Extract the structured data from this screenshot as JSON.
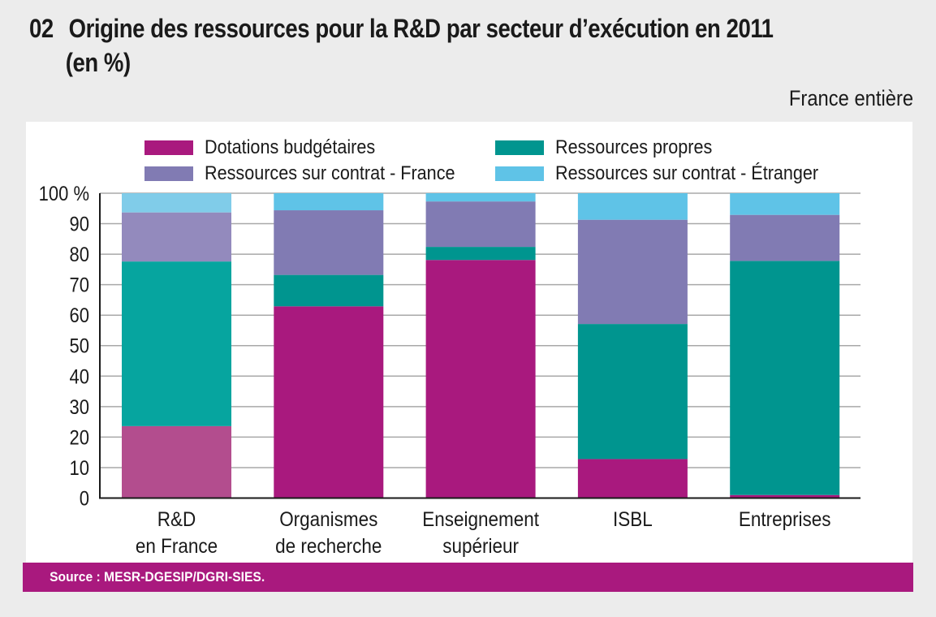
{
  "header": {
    "number": "02",
    "title_line1": "Origine des ressources pour la R&D par secteur d’exécution en 2011",
    "title_line2": "(en %)",
    "subtitle": "France entière"
  },
  "footer": {
    "source": "Source : MESR-DGESIP/DGRI-SIES."
  },
  "chart_data": {
    "type": "bar",
    "stacked": true,
    "title": "Origine des ressources pour la R&D par secteur d’exécution en 2011 (en %)",
    "subtitle": "France entière",
    "xlabel": "",
    "ylabel": "",
    "ylim": [
      0,
      100
    ],
    "yticks": [
      0,
      10,
      20,
      30,
      40,
      50,
      60,
      70,
      80,
      90,
      100
    ],
    "ytick_labels": [
      "0",
      "10",
      "20",
      "30",
      "40",
      "50",
      "60",
      "70",
      "80",
      "90",
      "100 %"
    ],
    "grid": true,
    "legend_position": "top",
    "categories": [
      [
        "R&D",
        "en France"
      ],
      [
        "Organismes",
        "de recherche"
      ],
      [
        "Enseignement",
        "supérieur"
      ],
      [
        "ISBL"
      ],
      [
        "Entreprises"
      ]
    ],
    "series": [
      {
        "name": "Dotations budgétaires",
        "color": "#a9197e",
        "highlight_color": "#b34d8e",
        "values": [
          23.6,
          62.9,
          78.1,
          12.8,
          1.0
        ]
      },
      {
        "name": "Ressources propres",
        "color": "#00958f",
        "highlight_color": "#06a59f",
        "values": [
          54.0,
          10.3,
          4.3,
          44.3,
          76.8
        ]
      },
      {
        "name": "Ressources sur contrat - France",
        "color": "#817bb3",
        "highlight_color": "#938abd",
        "values": [
          16.1,
          21.2,
          14.9,
          34.2,
          15.1
        ]
      },
      {
        "name": "Ressources sur contrat - Étranger",
        "color": "#5fc3e7",
        "highlight_color": "#80cce9",
        "values": [
          6.3,
          5.6,
          2.7,
          8.7,
          7.1
        ]
      }
    ],
    "highlighted_category_index": 0
  }
}
